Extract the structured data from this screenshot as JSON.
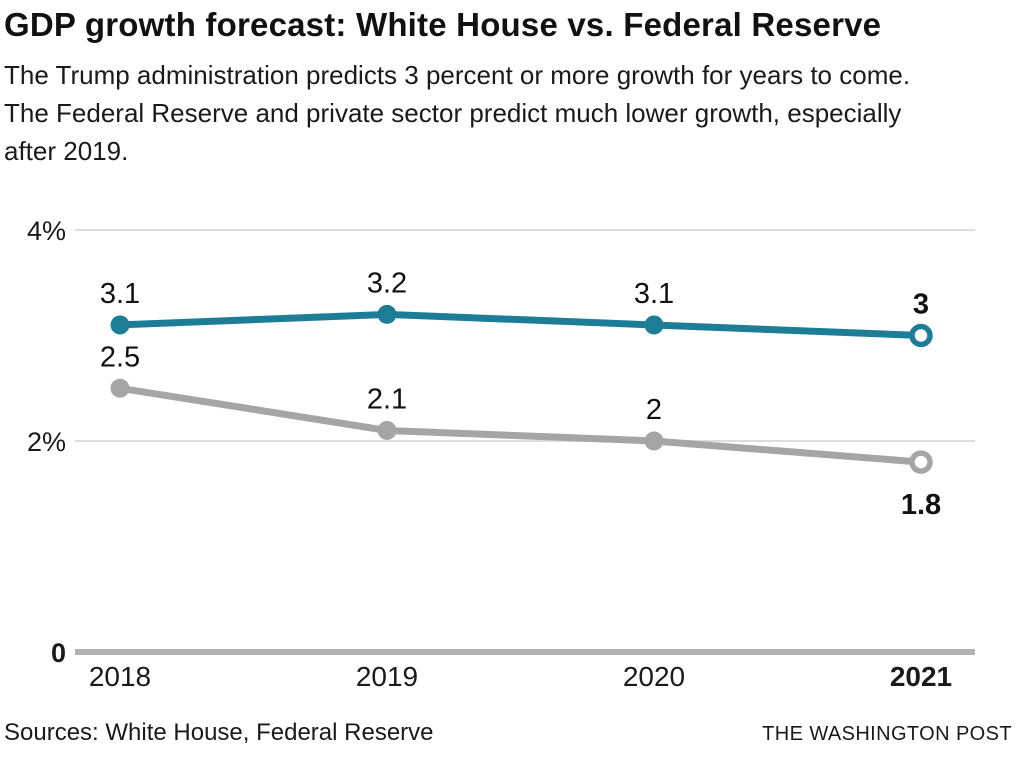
{
  "header": {
    "title": "GDP growth forecast: White House vs. Federal Reserve",
    "subtitle": "The Trump administration predicts 3 percent or more growth for years to come. The Federal Reserve and private sector predict much lower growth, especially after 2019."
  },
  "footer": {
    "sources": "Sources: White House, Federal Reserve",
    "credit": "THE WASHINGTON POST"
  },
  "chart_data": {
    "type": "line",
    "title": "GDP growth forecast: White House vs. Federal Reserve",
    "categories": [
      "2018",
      "2019",
      "2020",
      "2021"
    ],
    "series": [
      {
        "name": "White House",
        "values": [
          3.1,
          3.2,
          3.1,
          3.0
        ],
        "labels": [
          "3.1",
          "3.2",
          "3.1",
          "3"
        ],
        "color": "#1d7d97",
        "last_point_hollow": true,
        "last_label_bold": true,
        "last_label_position": "above"
      },
      {
        "name": "Federal Reserve",
        "values": [
          2.5,
          2.1,
          2.0,
          1.8
        ],
        "labels": [
          "2.5",
          "2.1",
          "2",
          "1.8"
        ],
        "color": "#a5a5a5",
        "last_point_hollow": true,
        "last_label_bold": true,
        "last_label_position": "below"
      }
    ],
    "y_ticks": [
      {
        "label": "4%",
        "value": 4,
        "bold": false
      },
      {
        "label": "2%",
        "value": 2,
        "bold": false
      },
      {
        "label": "0",
        "value": 0,
        "bold": true
      }
    ],
    "gridline_values": [
      4,
      2
    ],
    "ylim": [
      0,
      4
    ],
    "xlabel": "",
    "ylabel": "",
    "grid": true,
    "legend_position": "none",
    "bold_last_category": true
  }
}
